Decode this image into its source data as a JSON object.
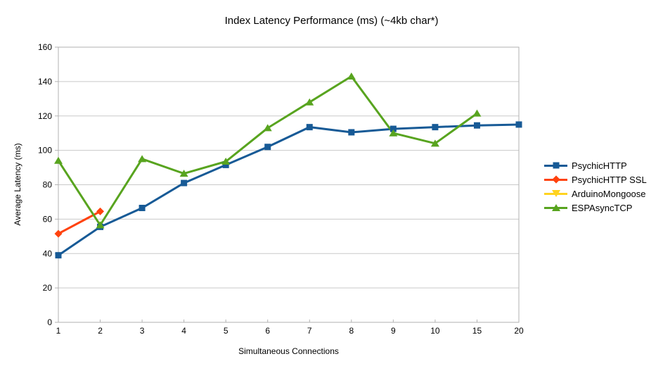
{
  "chart_data": {
    "type": "line",
    "title": "Index Latency Performance (ms) (~4kb char*)",
    "xlabel": "Simultaneous Connections",
    "ylabel": "Average Latency (ms)",
    "categories": [
      "1",
      "2",
      "3",
      "4",
      "5",
      "6",
      "7",
      "8",
      "9",
      "10",
      "15",
      "20"
    ],
    "y_ticks": [
      0,
      20,
      40,
      60,
      80,
      100,
      120,
      140,
      160
    ],
    "ylim": [
      0,
      160
    ],
    "grid": "horizontal",
    "legend_position": "right",
    "colors": {
      "grid": "#c9c9c9",
      "axis": "#b2b2b2",
      "text": "#000000",
      "background": "#ffffff"
    },
    "series": [
      {
        "name": "PsychicHTTP",
        "color": "#175a96",
        "marker": "square",
        "values": [
          39,
          55.5,
          66.5,
          81,
          91.5,
          102,
          113.5,
          110.5,
          112.5,
          113.5,
          114.5,
          115
        ]
      },
      {
        "name": "PsychicHTTP SSL",
        "color": "#ff420e",
        "marker": "diamond",
        "values": [
          51.5,
          64.5,
          null,
          null,
          null,
          null,
          null,
          null,
          null,
          null,
          null,
          null
        ]
      },
      {
        "name": "ArduinoMongoose",
        "color": "#ffd320",
        "marker": "triangle-down",
        "values": [
          null,
          null,
          null,
          null,
          null,
          null,
          null,
          null,
          null,
          null,
          null,
          null
        ]
      },
      {
        "name": "ESPAsyncTCP",
        "color": "#58a41f",
        "marker": "triangle-up",
        "values": [
          94,
          56.5,
          95,
          86.5,
          93.5,
          113,
          128,
          143,
          110,
          104,
          121.5,
          null
        ]
      }
    ]
  }
}
